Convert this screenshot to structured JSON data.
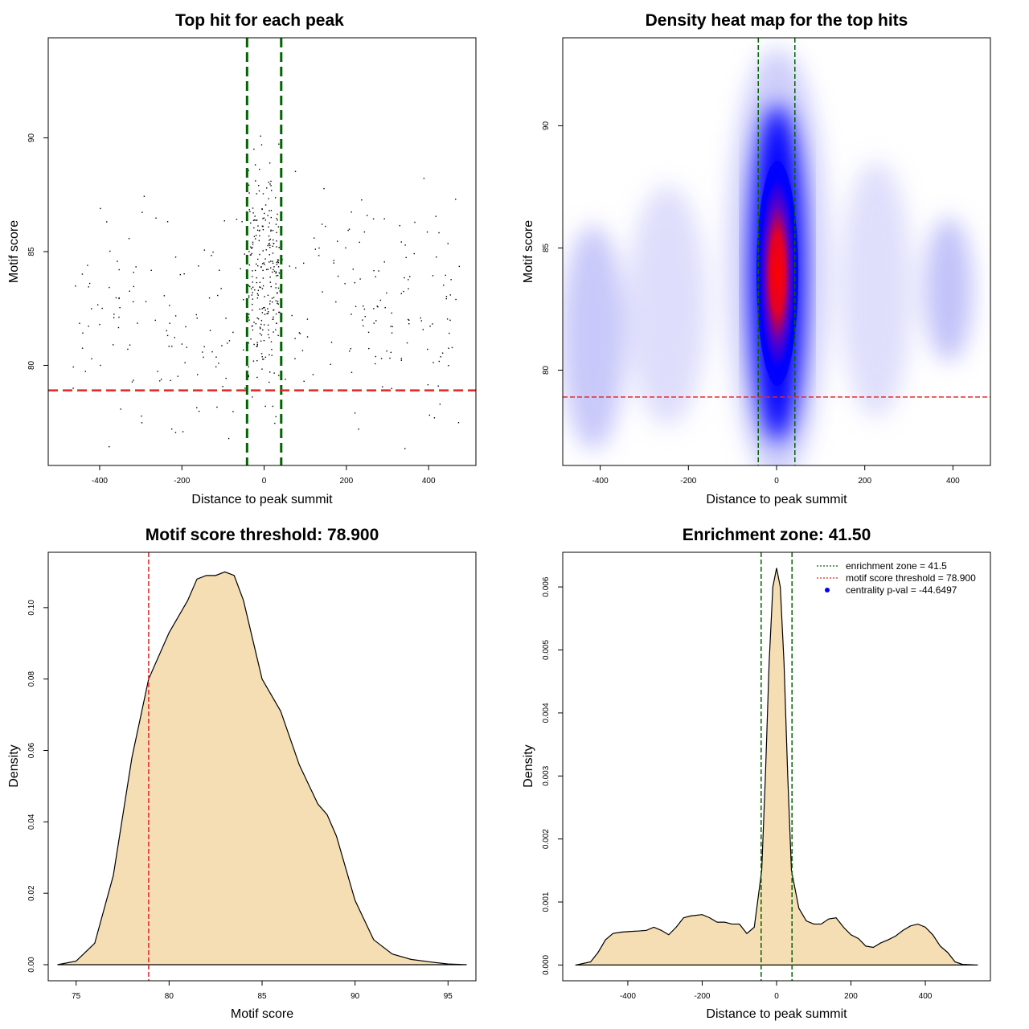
{
  "figure": {
    "colors": {
      "green": "#006400",
      "red": "#e32626",
      "fill": "#f5deb3",
      "point": "#000000"
    }
  },
  "chart_data": [
    {
      "type": "scatter",
      "title": "Top hit for each peak",
      "xlabel": "Distance to peak summit",
      "ylabel": "Motif score",
      "xlim": [
        -525,
        515
      ],
      "ylim": [
        75.6,
        94.4
      ],
      "xticks": [
        -400,
        -200,
        0,
        200,
        400
      ],
      "xtick_labels": [
        "-400",
        "-200",
        "0",
        "200",
        "400"
      ],
      "yticks": [
        80,
        85,
        90
      ],
      "ytick_labels": [
        "80",
        "85",
        "90"
      ],
      "vlines": [
        -41.5,
        41.5
      ],
      "hline": 78.9,
      "point_count": 520,
      "point_model": "approximately 45% of top hits within |distance| < 40 (motif scores ~78-94, centered ~84); remainder spread uniformly across -475..475 (scores ~76-89.5)"
    },
    {
      "type": "heatmap",
      "title": "Density heat map for the top hits",
      "xlabel": "Distance to peak summit",
      "ylabel": "Motif score",
      "xlim": [
        -485,
        485
      ],
      "ylim": [
        76.1,
        93.6
      ],
      "xticks": [
        -400,
        -200,
        0,
        200,
        400
      ],
      "xtick_labels": [
        "-400",
        "-200",
        "0",
        "200",
        "400"
      ],
      "yticks": [
        80,
        85,
        90
      ],
      "ytick_labels": [
        "80",
        "85",
        "90"
      ],
      "vlines": [
        -41.5,
        41.5
      ],
      "hline": 78.9,
      "color_scale": [
        "white",
        "blue",
        "red"
      ],
      "peak": {
        "x": 0,
        "y": 84
      }
    },
    {
      "type": "area",
      "title": "Motif score threshold: 78.900",
      "xlabel": "Motif score",
      "ylabel": "Density",
      "xlim": [
        73.5,
        96.5
      ],
      "ylim": [
        -0.0045,
        0.1155
      ],
      "xticks": [
        75,
        80,
        85,
        90,
        95
      ],
      "xtick_labels": [
        "75",
        "80",
        "85",
        "90",
        "95"
      ],
      "yticks": [
        0,
        0.02,
        0.04,
        0.06,
        0.08,
        0.1
      ],
      "ytick_labels": [
        "0.00",
        "0.02",
        "0.04",
        "0.06",
        "0.08",
        "0.10"
      ],
      "vline": 78.9,
      "x": [
        74,
        75,
        76,
        77,
        78,
        78.9,
        80,
        81,
        81.5,
        82,
        82.5,
        83,
        83.5,
        84,
        84.5,
        85,
        86,
        87,
        88,
        88.5,
        89,
        90,
        91,
        92,
        93,
        94,
        95,
        96
      ],
      "y": [
        0.0,
        0.001,
        0.006,
        0.025,
        0.058,
        0.08,
        0.093,
        0.102,
        0.108,
        0.109,
        0.109,
        0.11,
        0.109,
        0.102,
        0.091,
        0.08,
        0.071,
        0.056,
        0.045,
        0.042,
        0.036,
        0.018,
        0.007,
        0.003,
        0.0015,
        0.0008,
        0.0002,
        0.0
      ]
    },
    {
      "type": "area",
      "title": "Enrichment zone: 41.50",
      "xlabel": "Distance to peak summit",
      "ylabel": "Density",
      "xlim": [
        -575,
        575
      ],
      "ylim": [
        -0.00025,
        0.00655
      ],
      "xticks": [
        -400,
        -200,
        0,
        200,
        400
      ],
      "xtick_labels": [
        "-400",
        "-200",
        "0",
        "200",
        "400"
      ],
      "yticks": [
        0,
        0.001,
        0.002,
        0.003,
        0.004,
        0.005,
        0.006
      ],
      "ytick_labels": [
        "0.000",
        "0.001",
        "0.002",
        "0.003",
        "0.004",
        "0.005",
        "0.006"
      ],
      "vlines": [
        -41.5,
        41.5
      ],
      "x": [
        -540,
        -500,
        -480,
        -460,
        -440,
        -420,
        -400,
        -370,
        -350,
        -330,
        -310,
        -290,
        -270,
        -250,
        -230,
        -200,
        -180,
        -160,
        -140,
        -120,
        -100,
        -80,
        -60,
        -40,
        -30,
        -20,
        -10,
        0,
        10,
        20,
        30,
        40,
        60,
        80,
        100,
        120,
        140,
        160,
        180,
        200,
        220,
        240,
        260,
        280,
        300,
        320,
        340,
        360,
        380,
        400,
        420,
        440,
        460,
        480,
        500,
        540
      ],
      "y": [
        0.0,
        5e-05,
        0.0002,
        0.0004,
        0.0005,
        0.00052,
        0.00053,
        0.00054,
        0.00055,
        0.0006,
        0.00055,
        0.00048,
        0.0006,
        0.00075,
        0.00078,
        0.0008,
        0.00075,
        0.00068,
        0.00068,
        0.00065,
        0.00065,
        0.0005,
        0.0006,
        0.0015,
        0.003,
        0.0048,
        0.006,
        0.0063,
        0.006,
        0.0048,
        0.003,
        0.0015,
        0.0009,
        0.0007,
        0.00065,
        0.00065,
        0.00073,
        0.00075,
        0.0006,
        0.00048,
        0.00042,
        0.0003,
        0.00028,
        0.00035,
        0.0004,
        0.00046,
        0.00055,
        0.00062,
        0.00065,
        0.0006,
        0.00048,
        0.0003,
        0.0002,
        5e-05,
        1e-05,
        0.0
      ],
      "legend": [
        {
          "label": "enrichment zone = 41.5",
          "style": "dotted-green"
        },
        {
          "label": "motif score threshold = 78.900",
          "style": "dotted-red"
        },
        {
          "label": "centrality p-val = -44.6497",
          "style": "blue-point"
        }
      ]
    }
  ]
}
